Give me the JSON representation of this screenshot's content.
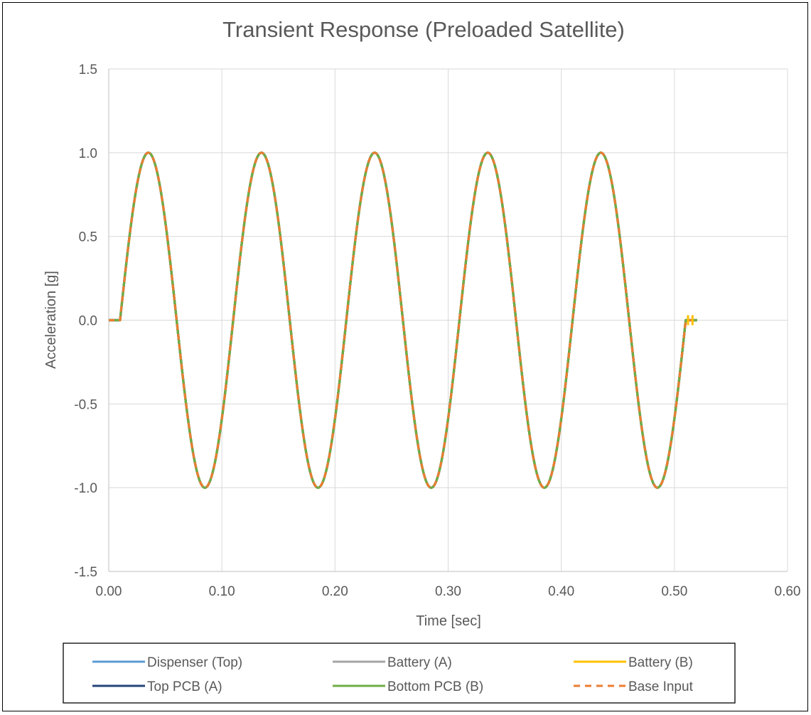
{
  "chart_data": {
    "type": "line",
    "title": "Transient Response (Preloaded Satellite)",
    "xlabel": "Time [sec]",
    "ylabel": "Acceleration [g]",
    "xlim": [
      0,
      0.6
    ],
    "ylim": [
      -1.5,
      1.5
    ],
    "x_ticks": [
      "0.00",
      "0.10",
      "0.20",
      "0.30",
      "0.40",
      "0.50",
      "0.60"
    ],
    "y_ticks": [
      "1.5",
      "1.0",
      "0.5",
      "0.0",
      "-0.5",
      "-1.0",
      "-1.5"
    ],
    "grid": true,
    "legend_position": "bottom",
    "signal": {
      "onset_time": 0.01,
      "end_time": 0.51,
      "frequency_hz": 10,
      "amplitude": 1.0,
      "data_end_time": 0.52
    },
    "key_points": [
      {
        "x": 0.0,
        "y": 0.0
      },
      {
        "x": 0.01,
        "y": 0.0
      },
      {
        "x": 0.035,
        "y": 1.0
      },
      {
        "x": 0.085,
        "y": -1.0
      },
      {
        "x": 0.135,
        "y": 1.0
      },
      {
        "x": 0.185,
        "y": -1.0
      },
      {
        "x": 0.235,
        "y": 1.0
      },
      {
        "x": 0.285,
        "y": -1.0
      },
      {
        "x": 0.335,
        "y": 1.0
      },
      {
        "x": 0.385,
        "y": -1.0
      },
      {
        "x": 0.435,
        "y": 1.0
      },
      {
        "x": 0.485,
        "y": -1.0
      },
      {
        "x": 0.51,
        "y": 0.0
      },
      {
        "x": 0.52,
        "y": 0.0
      }
    ],
    "series": [
      {
        "name": "Dispenser (Top)",
        "color": "#5B9BD5",
        "dash": false
      },
      {
        "name": "Battery (A)",
        "color": "#A5A5A5",
        "dash": false
      },
      {
        "name": "Battery (B)",
        "color": "#FFC000",
        "dash": false
      },
      {
        "name": "Top PCB (A)",
        "color": "#264478",
        "dash": false
      },
      {
        "name": "Bottom PCB (B)",
        "color": "#70AD47",
        "dash": false
      },
      {
        "name": "Base Input",
        "color": "#ED7D31",
        "dash": true
      }
    ]
  }
}
